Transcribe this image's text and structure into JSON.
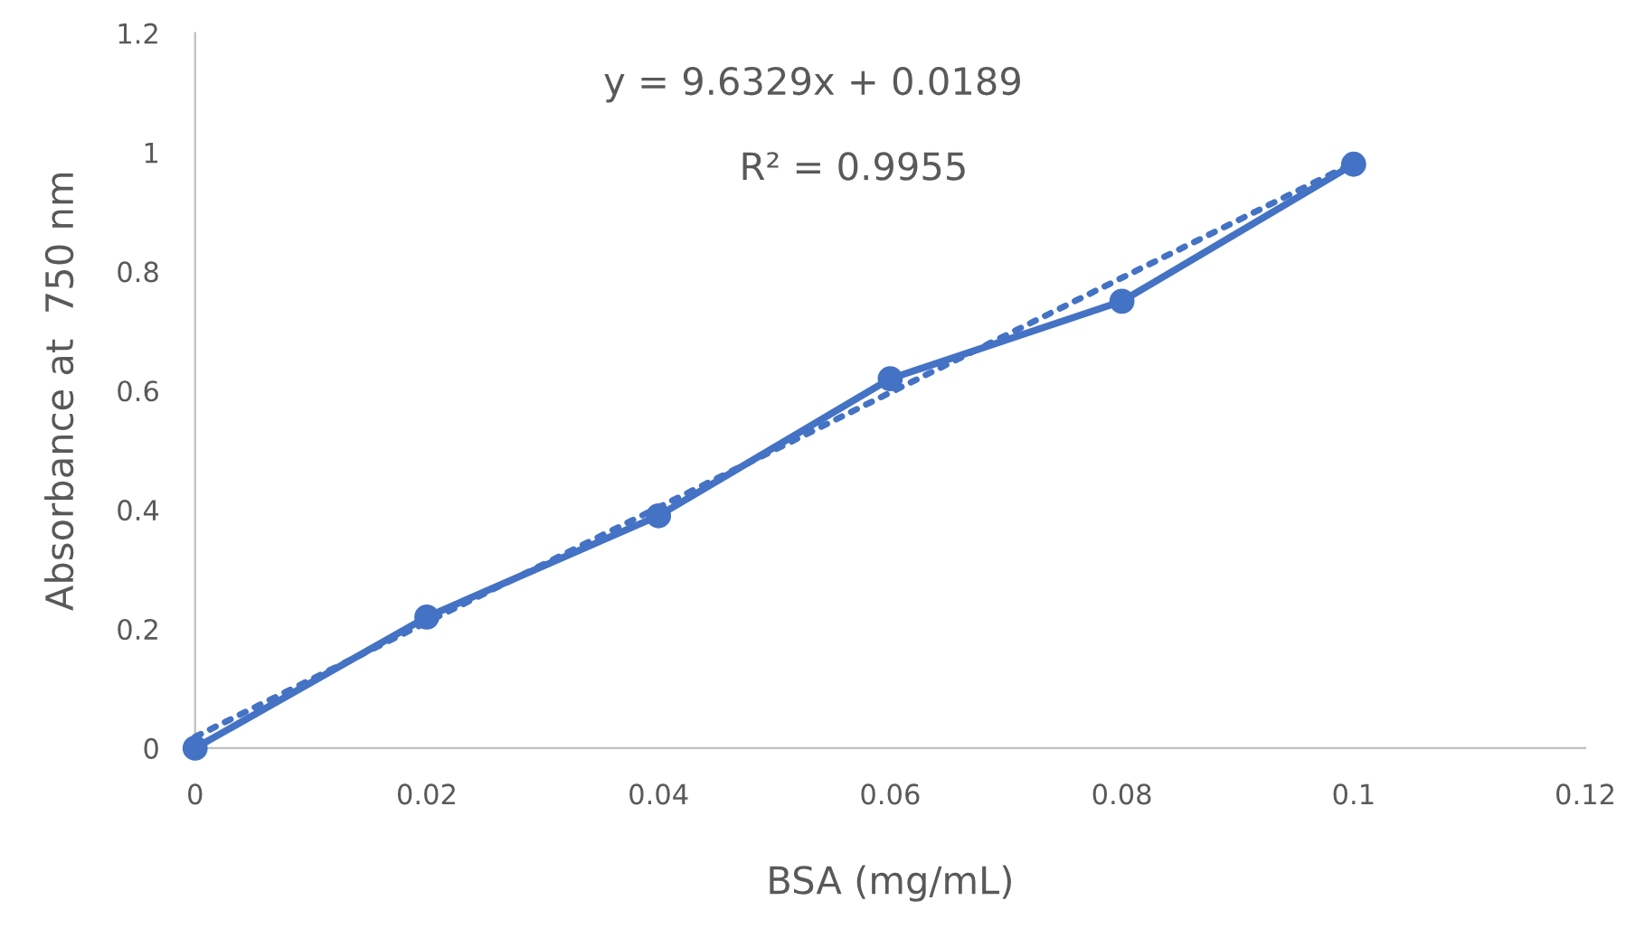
{
  "chart_data": {
    "type": "line",
    "xlabel": "BSA (mg/mL)",
    "ylabel": "Absorbance at  750 nm",
    "annotations": [
      "y = 9.6329x + 0.0189",
      "R² = 0.9955"
    ],
    "series": [
      {
        "color": "#4472c4",
        "x": [
          0,
          0.02,
          0.04,
          0.06,
          0.08,
          0.1
        ],
        "values": [
          0,
          0.22,
          0.39,
          0.62,
          0.75,
          0.98
        ],
        "marker": "circle",
        "line_style": "solid"
      },
      {
        "type": "line",
        "color": "#4472c4",
        "x": [
          0,
          0.1
        ],
        "values": [
          0.0189,
          0.982
        ],
        "marker": "none",
        "line_style": "dotted"
      }
    ],
    "xlim": [
      0,
      0.12
    ],
    "xticks": [
      0,
      0.02,
      0.04,
      0.06,
      0.08,
      0.1,
      0.12
    ],
    "ylim": [
      0,
      1.2
    ],
    "yticks": [
      0,
      0.2,
      0.4,
      0.6,
      0.8,
      1,
      1.2
    ],
    "grid": false,
    "legend": false
  }
}
